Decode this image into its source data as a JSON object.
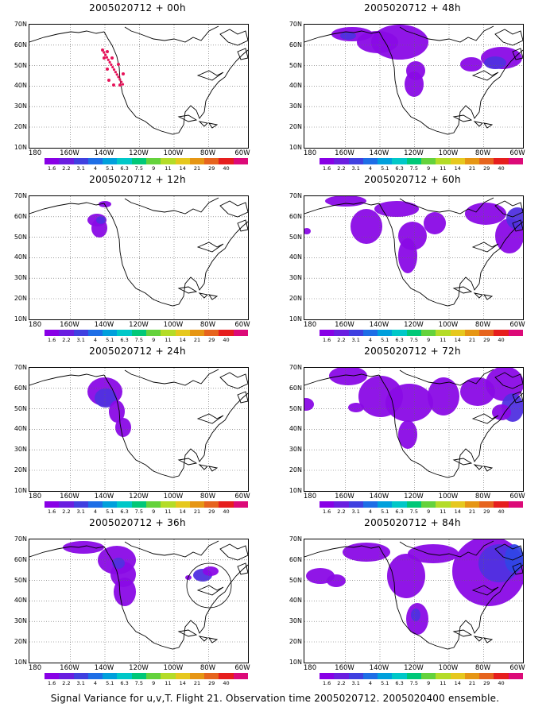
{
  "caption": "Signal Variance for u,v,T. Flight 21. Observation time 2005020712. 2005020400 ensemble.",
  "lat_labels": [
    "70N",
    "60N",
    "50N",
    "40N",
    "30N",
    "20N",
    "10N"
  ],
  "lon_labels": [
    "180",
    "160W",
    "140W",
    "120W",
    "100W",
    "80W",
    "60W"
  ],
  "colorbar": {
    "labels": [
      "1.6",
      "2.2",
      "3.1",
      "4",
      "5.1",
      "6.3",
      "7.5",
      "9",
      "11",
      "14",
      "21",
      "29",
      "40"
    ],
    "colors": [
      "#8800e6",
      "#6a1ee0",
      "#4040e0",
      "#1e6ee6",
      "#00a0dc",
      "#00c8c8",
      "#00c878",
      "#64d23c",
      "#b4dc28",
      "#e6c81e",
      "#e69614",
      "#e6641e",
      "#e61e1e",
      "#dc0a78"
    ]
  },
  "panels": [
    {
      "title": "2005020712 + 00h"
    },
    {
      "title": "2005020712 + 48h"
    },
    {
      "title": "2005020712 + 12h"
    },
    {
      "title": "2005020712 + 60h"
    },
    {
      "title": "2005020712 + 24h"
    },
    {
      "title": "2005020712 + 72h"
    },
    {
      "title": "2005020712 + 36h"
    },
    {
      "title": "2005020712 + 84h"
    }
  ]
}
